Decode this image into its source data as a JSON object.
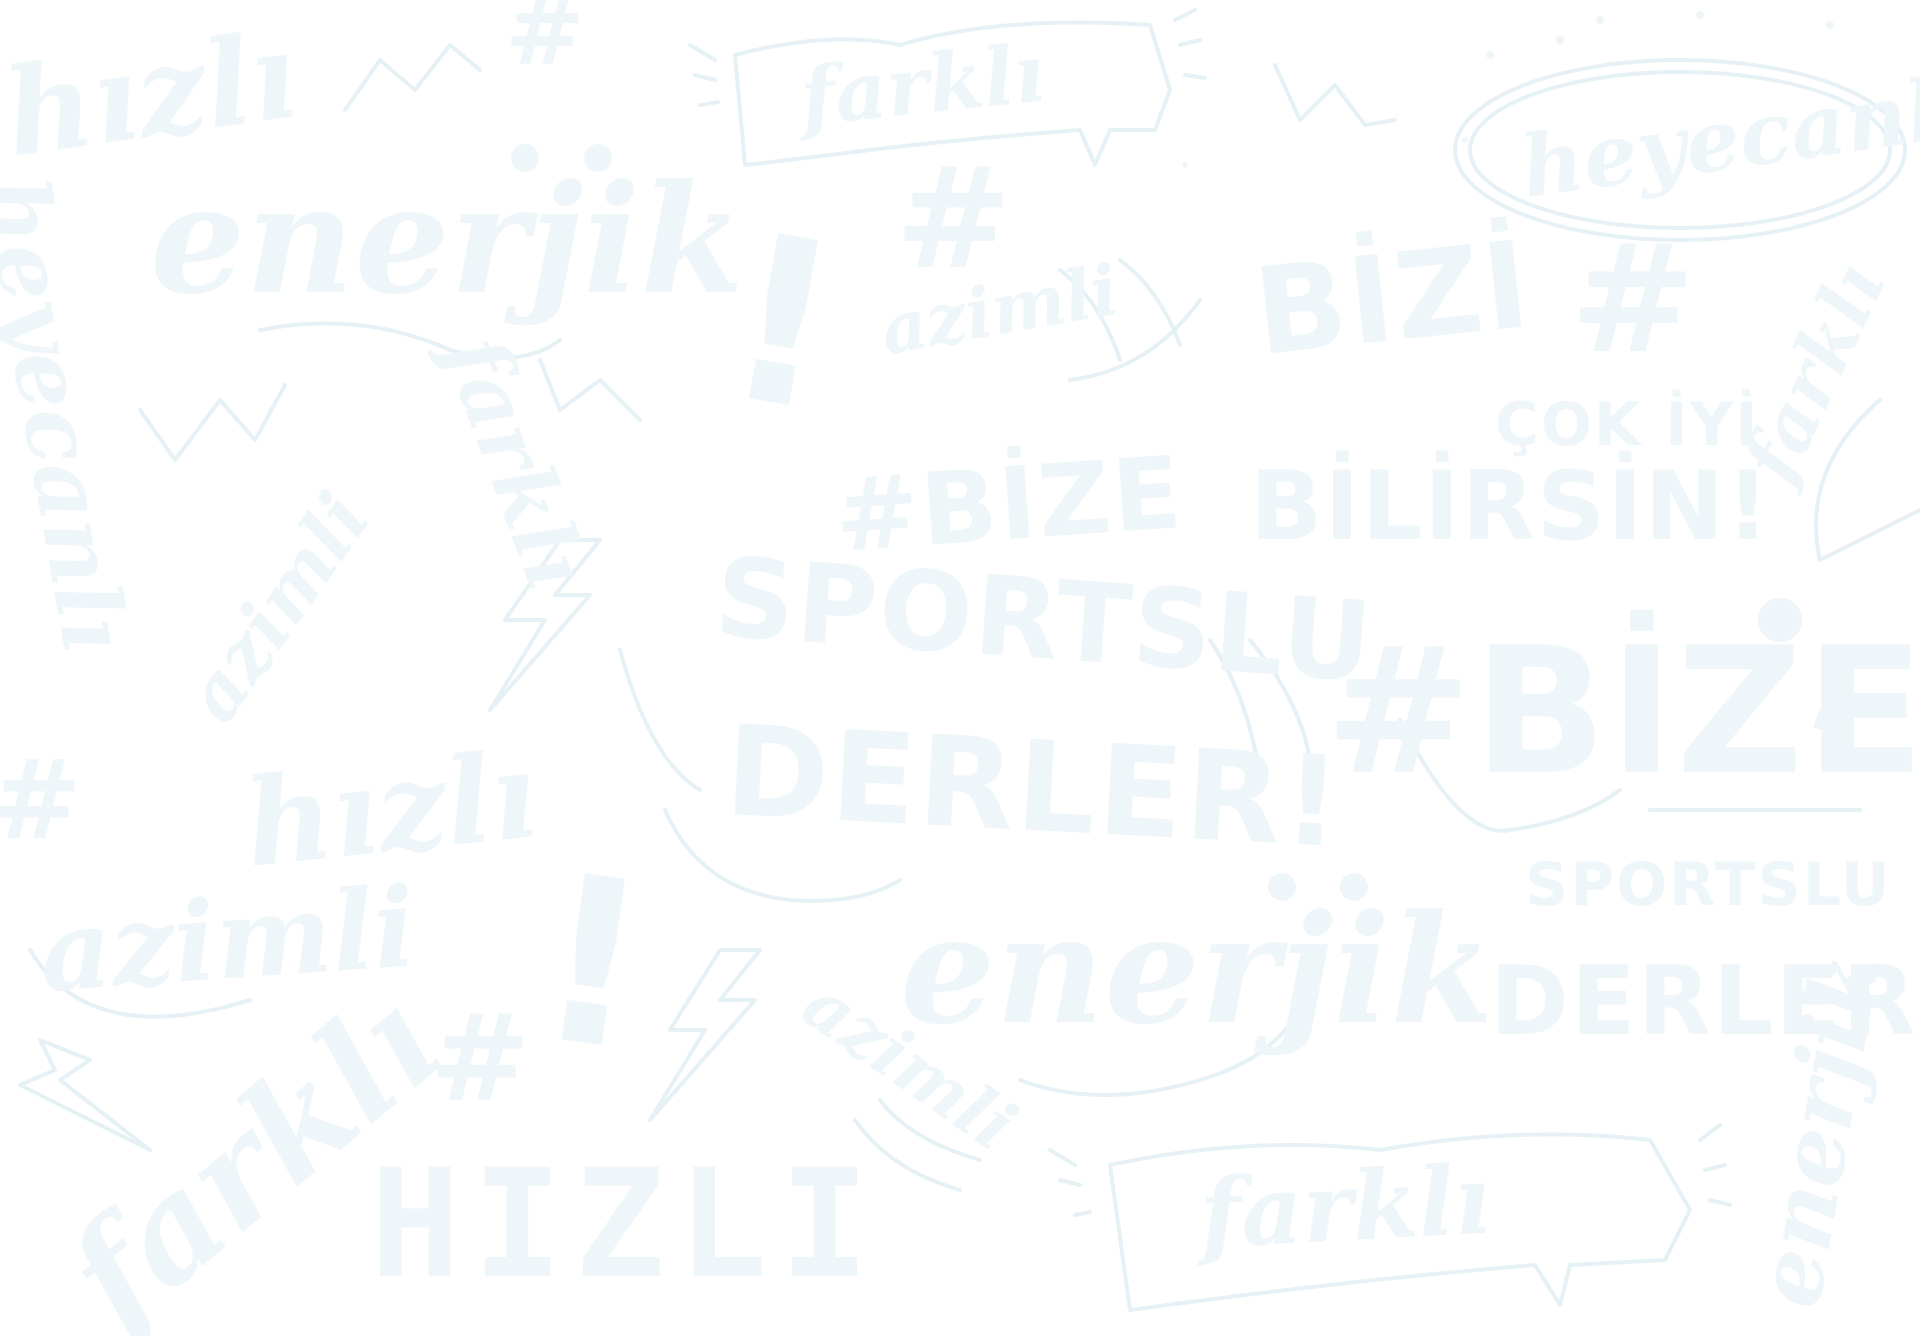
{
  "colors": {
    "background": "#ffffff",
    "ink": "#eef6fa",
    "ink_stroke": "#e6f1f6"
  },
  "words": {
    "hizli": "hızlı",
    "enerjik": "enerjik",
    "heyecanli": "heyecanlı",
    "farkli": "farklı",
    "azimli": "azimli",
    "bizi": "BİZİ",
    "bize": "BİZE",
    "hash_bize": "#BİZE",
    "hash": "#",
    "cok_iyi": "ÇOK İYİ",
    "bilirsin": "BİLİRSİN!",
    "sportslu": "SPORTSLU",
    "derler": "DERLER!",
    "hizli_caps": "HIZLI",
    "exclaim": "!"
  }
}
